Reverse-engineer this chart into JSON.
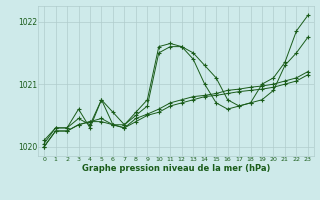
{
  "title": "Graphe pression niveau de la mer (hPa)",
  "bg_color": "#ceeaea",
  "grid_color": "#b0cccc",
  "line_color": "#1a5c1a",
  "xlim": [
    -0.5,
    23.5
  ],
  "ylim": [
    1019.85,
    1022.25
  ],
  "yticks": [
    1020,
    1021,
    1022
  ],
  "xticks": [
    0,
    1,
    2,
    3,
    4,
    5,
    6,
    7,
    8,
    9,
    10,
    11,
    12,
    13,
    14,
    15,
    16,
    17,
    18,
    19,
    20,
    21,
    22,
    23
  ],
  "series": [
    [
      1020.1,
      1020.3,
      1020.3,
      1020.45,
      1020.35,
      1020.75,
      1020.55,
      1020.35,
      1020.55,
      1020.75,
      1021.6,
      1021.65,
      1021.6,
      1021.4,
      1021.0,
      1020.7,
      1020.6,
      1020.65,
      1020.7,
      1021.0,
      1021.1,
      1021.35,
      1021.85,
      1022.1
    ],
    [
      1020.05,
      1020.3,
      1020.3,
      1020.6,
      1020.3,
      1020.75,
      1020.35,
      1020.35,
      1020.5,
      1020.65,
      1021.5,
      1021.6,
      1021.6,
      1021.5,
      1021.3,
      1021.1,
      1020.75,
      1020.65,
      1020.7,
      1020.75,
      1020.9,
      1021.3,
      1021.5,
      1021.75
    ],
    [
      1020.0,
      1020.25,
      1020.25,
      1020.35,
      1020.4,
      1020.4,
      1020.35,
      1020.3,
      1020.4,
      1020.5,
      1020.55,
      1020.65,
      1020.7,
      1020.75,
      1020.8,
      1020.82,
      1020.85,
      1020.88,
      1020.9,
      1020.92,
      1020.95,
      1021.0,
      1021.05,
      1021.15
    ],
    [
      1020.0,
      1020.25,
      1020.25,
      1020.35,
      1020.4,
      1020.45,
      1020.35,
      1020.3,
      1020.45,
      1020.52,
      1020.6,
      1020.7,
      1020.75,
      1020.8,
      1020.82,
      1020.85,
      1020.9,
      1020.92,
      1020.95,
      1020.97,
      1021.0,
      1021.05,
      1021.1,
      1021.2
    ]
  ]
}
